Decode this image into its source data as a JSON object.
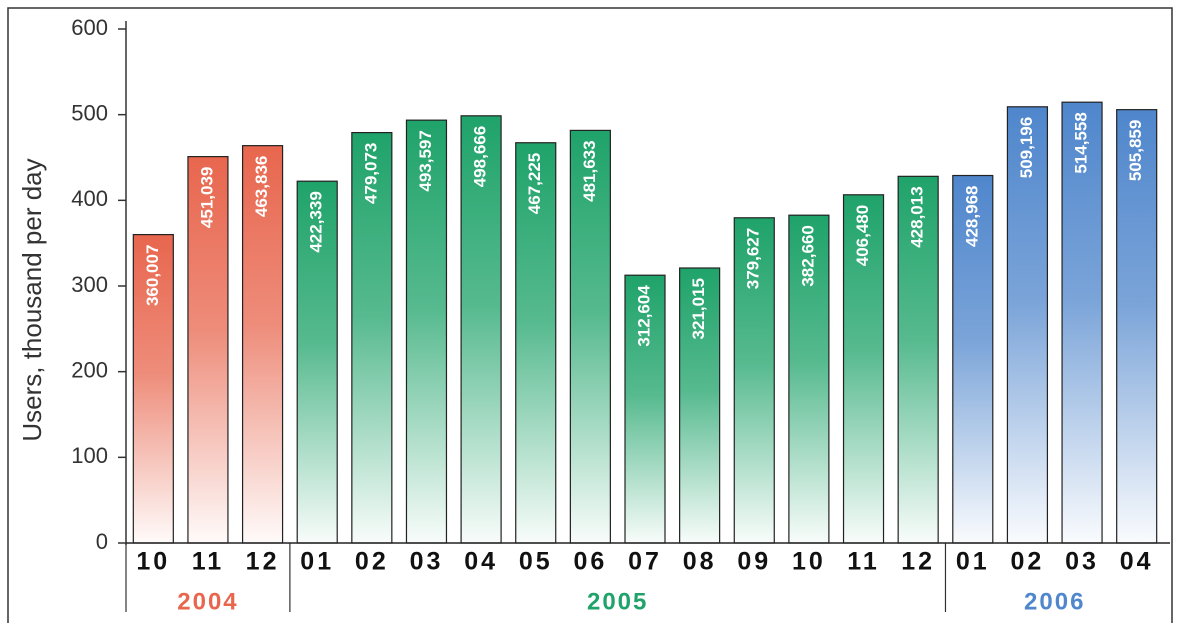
{
  "chart_data": {
    "type": "bar",
    "y_label": "Users, thousand per day",
    "ylim": [
      0,
      600
    ],
    "yticks": [
      0,
      100,
      200,
      300,
      400,
      500,
      600
    ],
    "series": [
      {
        "name": "2004",
        "color": "#e8664e",
        "categories": [
          "10",
          "11",
          "12"
        ],
        "values": [
          360.007,
          451.039,
          463.836
        ],
        "value_labels": [
          "360,007",
          "451,039",
          "463,836"
        ]
      },
      {
        "name": "2005",
        "color": "#1fa36a",
        "categories": [
          "01",
          "02",
          "03",
          "04",
          "05",
          "06",
          "07",
          "08",
          "09",
          "10",
          "11",
          "12"
        ],
        "values": [
          422.339,
          479.073,
          493.597,
          498.666,
          467.225,
          481.633,
          312.604,
          321.015,
          379.627,
          382.66,
          406.48,
          428.013
        ],
        "value_labels": [
          "422,339",
          "479,073",
          "493,597",
          "498,666",
          "467,225",
          "481,633",
          "312,604",
          "321,015",
          "379,627",
          "382,660",
          "406,480",
          "428,013"
        ]
      },
      {
        "name": "2006",
        "color": "#4f86cc",
        "categories": [
          "01",
          "02",
          "03",
          "04"
        ],
        "values": [
          428.968,
          509.196,
          514.558,
          505.859
        ],
        "value_labels": [
          "428,968",
          "509,196",
          "514,558",
          "505,859"
        ]
      }
    ]
  }
}
